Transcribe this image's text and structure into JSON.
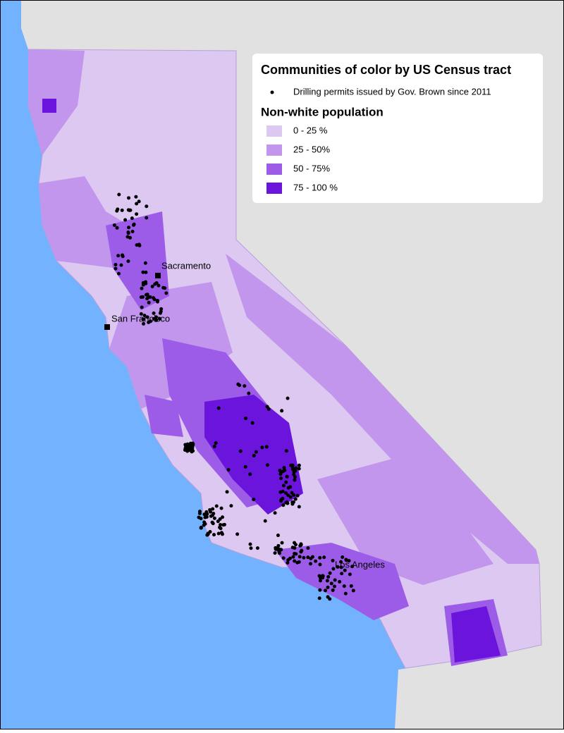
{
  "legend": {
    "title": "Communities of color by US Census tract",
    "points_label": "Drilling permits issued by Gov. Brown since 2011",
    "subtitle": "Non-white population",
    "classes": [
      {
        "label": "0 - 25 %",
        "color": "#dcc8f0"
      },
      {
        "label": "25 - 50%",
        "color": "#c196ec"
      },
      {
        "label": "50 - 75%",
        "color": "#9c5ce8"
      },
      {
        "label": "75 - 100 %",
        "color": "#6a14dc"
      }
    ]
  },
  "cities": [
    {
      "name": "Sacramento"
    },
    {
      "name": "San Francisco"
    },
    {
      "name": "Los Angeles"
    }
  ]
}
